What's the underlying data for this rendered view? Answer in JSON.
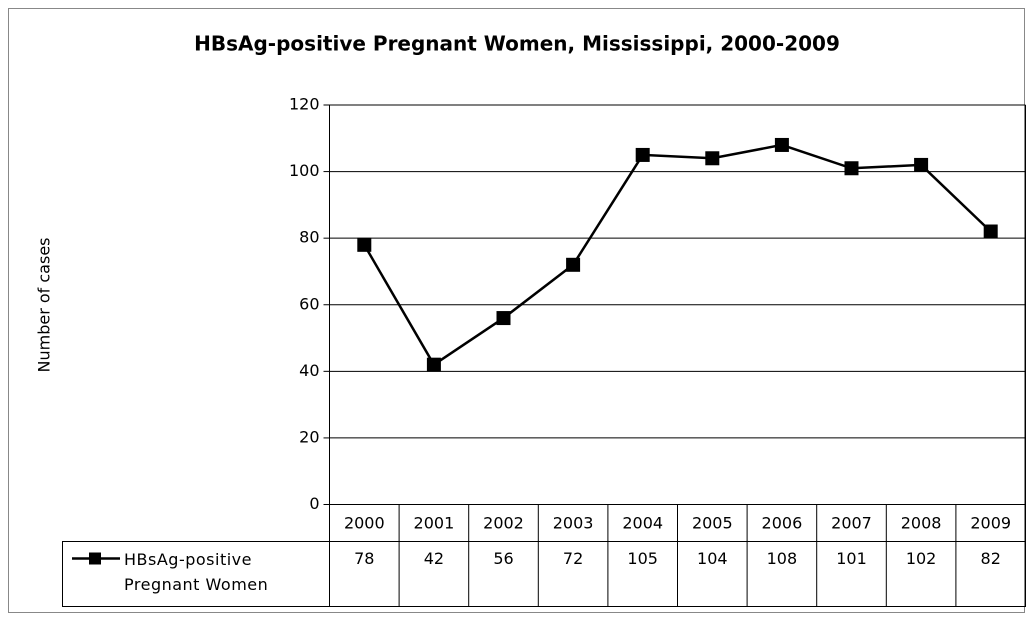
{
  "chart_data": {
    "type": "line",
    "title": "HBsAg-positive Pregnant Women, Mississippi, 2000-2009",
    "y_label": "Number of cases",
    "categories": [
      "2000",
      "2001",
      "2002",
      "2003",
      "2004",
      "2005",
      "2006",
      "2007",
      "2008",
      "2009"
    ],
    "series": [
      {
        "name": "HBsAg-positive Pregnant Women",
        "color": "#000000",
        "values": [
          78,
          42,
          56,
          72,
          105,
          104,
          108,
          101,
          102,
          82
        ]
      }
    ],
    "ylim": [
      0,
      120
    ],
    "yticks": [
      0,
      20,
      40,
      60,
      80,
      100,
      120
    ],
    "grid": true,
    "data_table": true
  }
}
